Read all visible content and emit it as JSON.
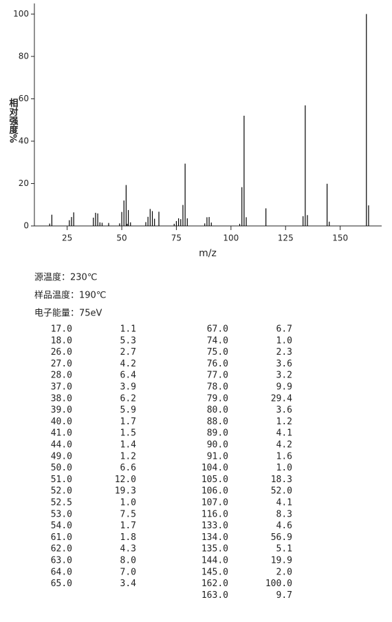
{
  "chart_data": {
    "type": "bar",
    "x_label": "m/z",
    "y_label": "相对强度%",
    "x": [
      17,
      18,
      26,
      27,
      28,
      37,
      38,
      39,
      40,
      41,
      44,
      49,
      50,
      51,
      52,
      52.5,
      53,
      54,
      61,
      62,
      63,
      64,
      65,
      67,
      74,
      75,
      76,
      77,
      78,
      79,
      80,
      88,
      89,
      90,
      91,
      104,
      105,
      106,
      107,
      116,
      133,
      134,
      135,
      144,
      145,
      162,
      163
    ],
    "values": [
      1.1,
      5.3,
      2.7,
      4.2,
      6.4,
      3.9,
      6.2,
      5.9,
      1.7,
      1.5,
      1.4,
      1.2,
      6.6,
      12.0,
      19.3,
      1.0,
      7.5,
      1.7,
      1.8,
      4.3,
      8.0,
      7.0,
      3.4,
      6.7,
      1.0,
      2.3,
      3.6,
      3.2,
      9.9,
      29.4,
      3.6,
      1.2,
      4.1,
      4.2,
      1.6,
      1.0,
      18.3,
      52.0,
      4.1,
      8.3,
      4.6,
      56.9,
      5.1,
      19.9,
      2.0,
      100.0,
      9.7
    ],
    "color": "#000000",
    "xlim": [
      10,
      169
    ],
    "xticks": [
      25,
      50,
      75,
      100,
      125,
      150
    ],
    "ylim": [
      0,
      105
    ],
    "yticks": [
      0,
      20,
      40,
      60,
      80,
      100
    ]
  },
  "info": [
    "源温度：230℃",
    "样品温度：190℃",
    "电子能量：75eV"
  ],
  "table": {
    "left": [
      [
        "17.0",
        "1.1"
      ],
      [
        "18.0",
        "5.3"
      ],
      [
        "26.0",
        "2.7"
      ],
      [
        "27.0",
        "4.2"
      ],
      [
        "28.0",
        "6.4"
      ],
      [
        "37.0",
        "3.9"
      ],
      [
        "38.0",
        "6.2"
      ],
      [
        "39.0",
        "5.9"
      ],
      [
        "40.0",
        "1.7"
      ],
      [
        "41.0",
        "1.5"
      ],
      [
        "44.0",
        "1.4"
      ],
      [
        "49.0",
        "1.2"
      ],
      [
        "50.0",
        "6.6"
      ],
      [
        "51.0",
        "12.0"
      ],
      [
        "52.0",
        "19.3"
      ],
      [
        "52.5",
        "1.0"
      ],
      [
        "53.0",
        "7.5"
      ],
      [
        "54.0",
        "1.7"
      ],
      [
        "61.0",
        "1.8"
      ],
      [
        "62.0",
        "4.3"
      ],
      [
        "63.0",
        "8.0"
      ],
      [
        "64.0",
        "7.0"
      ],
      [
        "65.0",
        "3.4"
      ]
    ],
    "right": [
      [
        "67.0",
        "6.7"
      ],
      [
        "74.0",
        "1.0"
      ],
      [
        "75.0",
        "2.3"
      ],
      [
        "76.0",
        "3.6"
      ],
      [
        "77.0",
        "3.2"
      ],
      [
        "78.0",
        "9.9"
      ],
      [
        "79.0",
        "29.4"
      ],
      [
        "80.0",
        "3.6"
      ],
      [
        "88.0",
        "1.2"
      ],
      [
        "89.0",
        "4.1"
      ],
      [
        "90.0",
        "4.2"
      ],
      [
        "91.0",
        "1.6"
      ],
      [
        "104.0",
        "1.0"
      ],
      [
        "105.0",
        "18.3"
      ],
      [
        "106.0",
        "52.0"
      ],
      [
        "107.0",
        "4.1"
      ],
      [
        "116.0",
        "8.3"
      ],
      [
        "133.0",
        "4.6"
      ],
      [
        "134.0",
        "56.9"
      ],
      [
        "135.0",
        "5.1"
      ],
      [
        "144.0",
        "19.9"
      ],
      [
        "145.0",
        "2.0"
      ],
      [
        "162.0",
        "100.0"
      ],
      [
        "163.0",
        "9.7"
      ]
    ]
  }
}
